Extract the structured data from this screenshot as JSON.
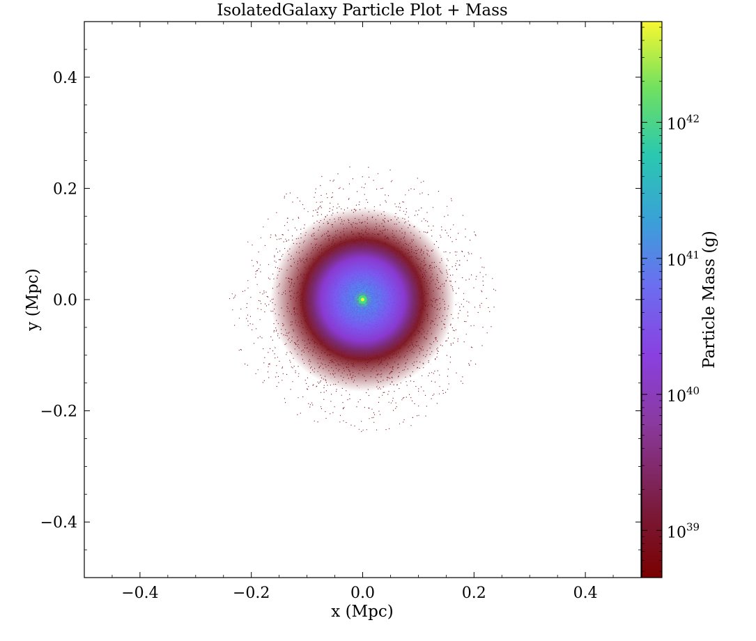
{
  "chart_data": {
    "type": "scatter",
    "title": "IsolatedGalaxy Particle Plot + Mass",
    "xlabel": "x  (Mpc)",
    "ylabel": "y  (Mpc)",
    "xlim": [
      -0.5,
      0.5
    ],
    "ylim": [
      -0.5,
      0.5
    ],
    "x_ticks": [
      -0.4,
      -0.2,
      0.0,
      0.2,
      0.4
    ],
    "x_tick_labels": [
      "−0.4",
      "−0.2",
      "0.0",
      "0.2",
      "0.4"
    ],
    "y_ticks": [
      -0.4,
      -0.2,
      0.0,
      0.2,
      0.4
    ],
    "y_tick_labels": [
      "−0.4",
      "−0.2",
      "0.0",
      "0.2",
      "0.4"
    ],
    "grid": false,
    "colorbar": {
      "label": "Particle Mass  (g)",
      "scale": "log",
      "range": [
        4.5e+38,
        5.5e+42
      ],
      "colormap": "spectral-like (dark red → purple → blue → green → yellow)",
      "ticks": [
        1e+39,
        1e+40,
        1e+41,
        1e+42
      ],
      "tick_labels": [
        {
          "base": "10",
          "exp": "39"
        },
        {
          "base": "10",
          "exp": "40"
        },
        {
          "base": "10",
          "exp": "41"
        },
        {
          "base": "10",
          "exp": "42"
        }
      ]
    },
    "series": [
      {
        "distribution": "roughly circular particle cloud centred at (0.0, 0.0)",
        "outer_radius_mpc": 0.23,
        "center_mass_g": 5e+42,
        "core_radius_mpc": 0.05,
        "mid_radius_mpc": 0.1,
        "edge_mass_g": 5e+38
      }
    ],
    "colors": {
      "edge": "#7a0f1a",
      "mid": "#8a2fe0",
      "inner": "#4d8cf0",
      "core": "#3fe080",
      "peak": "#f5f53a"
    }
  }
}
